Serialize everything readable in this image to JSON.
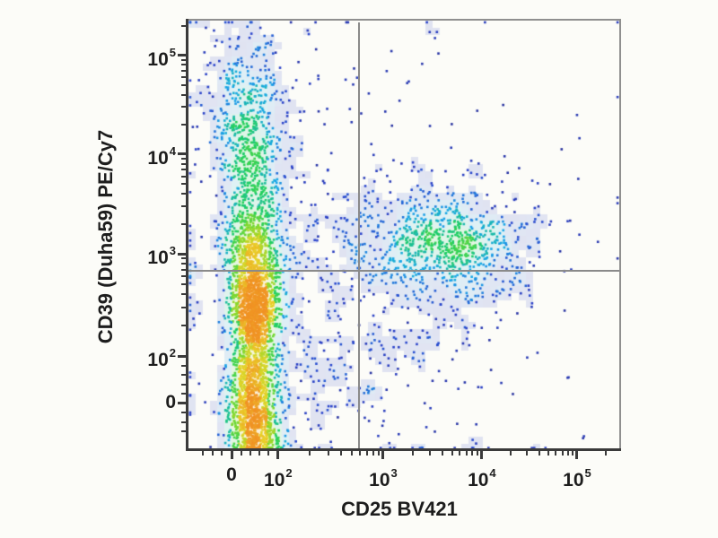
{
  "figure": {
    "background": "#fcfcf8",
    "description": "Flow cytometry pseudocolor dot plot with quadrant gates"
  },
  "colors": {
    "axis_dark": "#3a3a3a",
    "frame_gray": "#8f8f8f",
    "gate_gray": "#8a8a8a",
    "text": "#1d1d1d"
  },
  "chart_data": {
    "type": "scatter",
    "variant": "flow_cytometry_pseudocolor_density",
    "title": "",
    "xlabel": "CD25 BV421",
    "ylabel": "CD39 (Duha59) PE/Cy7",
    "grid": false,
    "legend": false,
    "x_axis": {
      "scale": "biexponential",
      "major_ticks": [
        {
          "text": "0",
          "frac": 0.1
        },
        {
          "base": "10",
          "exp": "2",
          "frac": 0.208
        },
        {
          "base": "10",
          "exp": "3",
          "frac": 0.452
        },
        {
          "base": "10",
          "exp": "4",
          "frac": 0.681
        },
        {
          "base": "10",
          "exp": "5",
          "frac": 0.902
        }
      ],
      "minor_fracs": [
        0.034,
        0.056,
        0.078,
        0.122,
        0.143,
        0.165,
        0.186,
        0.2815,
        0.3244,
        0.3549,
        0.3786,
        0.3978,
        0.4142,
        0.4283,
        0.4408,
        0.5209,
        0.5612,
        0.5898,
        0.6121,
        0.6301,
        0.6455,
        0.6588,
        0.6705,
        0.7475,
        0.7864,
        0.814,
        0.8355,
        0.8529,
        0.8678,
        0.8806,
        0.8919,
        0.9685
      ]
    },
    "y_axis": {
      "scale": "biexponential",
      "major_ticks": [
        {
          "base": "10",
          "exp": "5",
          "frac": 0.081
        },
        {
          "base": "10",
          "exp": "4",
          "frac": 0.311
        },
        {
          "base": "10",
          "exp": "3",
          "frac": 0.543
        },
        {
          "base": "10",
          "exp": "2",
          "frac": 0.781
        },
        {
          "text": "0",
          "frac": 0.891
        }
      ],
      "minor_fracs": [
        0.012,
        0.0916,
        0.1033,
        0.1166,
        0.132,
        0.1502,
        0.1725,
        0.2013,
        0.2418,
        0.3216,
        0.3335,
        0.347,
        0.3625,
        0.3808,
        0.4033,
        0.4323,
        0.4732,
        0.5539,
        0.5661,
        0.5799,
        0.5958,
        0.6147,
        0.6377,
        0.6675,
        0.7094,
        0.803,
        0.825,
        0.847,
        0.869,
        0.913,
        0.935,
        0.957
      ]
    },
    "quadrant_gate": {
      "x_frac": 0.396,
      "y_frac": 0.583,
      "x_value_approx": 600,
      "y_value_approx": 700
    },
    "colormap": [
      "#23237e",
      "#2b44cc",
      "#18a6e8",
      "#20cf60",
      "#7fd82e",
      "#e8d429",
      "#f09224"
    ],
    "total_events_approx": 5200,
    "populations": [
      {
        "name": "cd25neg-core",
        "n": 1050,
        "cx": 0.155,
        "cy": 0.675,
        "sx": 0.026,
        "sy": 0.055
      },
      {
        "name": "cd25neg-lower",
        "n": 850,
        "cx": 0.15,
        "cy": 0.855,
        "sx": 0.03,
        "sy": 0.065
      },
      {
        "name": "cd25neg-bottom",
        "n": 350,
        "cx": 0.152,
        "cy": 0.94,
        "sx": 0.028,
        "sy": 0.035
      },
      {
        "name": "cd25neg-upper-mid",
        "n": 650,
        "cx": 0.15,
        "cy": 0.555,
        "sx": 0.032,
        "sy": 0.07
      },
      {
        "name": "cd39hi-column",
        "n": 420,
        "cx": 0.145,
        "cy": 0.375,
        "sx": 0.042,
        "sy": 0.095
      },
      {
        "name": "cd39hi-top",
        "n": 260,
        "cx": 0.142,
        "cy": 0.215,
        "sx": 0.048,
        "sy": 0.075
      },
      {
        "name": "cd39hi-apex",
        "n": 70,
        "cx": 0.14,
        "cy": 0.105,
        "sx": 0.055,
        "sy": 0.055
      },
      {
        "name": "cd25pos-core",
        "n": 520,
        "cx": 0.6,
        "cy": 0.525,
        "sx": 0.085,
        "sy": 0.05
      },
      {
        "name": "cd25pos-halo",
        "n": 290,
        "cx": 0.58,
        "cy": 0.505,
        "sx": 0.135,
        "sy": 0.1
      },
      {
        "name": "bridge-scatter",
        "n": 240,
        "cx": 0.33,
        "cy": 0.6,
        "sx": 0.2,
        "sy": 0.18
      },
      {
        "name": "broad-background",
        "n": 220,
        "cx": 0.42,
        "cy": 0.52,
        "sx": 0.28,
        "sy": 0.3
      },
      {
        "name": "bottom-edge-pile",
        "n": 90,
        "cx": 0.155,
        "cy": 0.984,
        "sx": 0.03,
        "sy": 0.01
      },
      {
        "name": "lower-mid-scatter",
        "n": 120,
        "cx": 0.4,
        "cy": 0.84,
        "sx": 0.16,
        "sy": 0.09
      }
    ]
  }
}
